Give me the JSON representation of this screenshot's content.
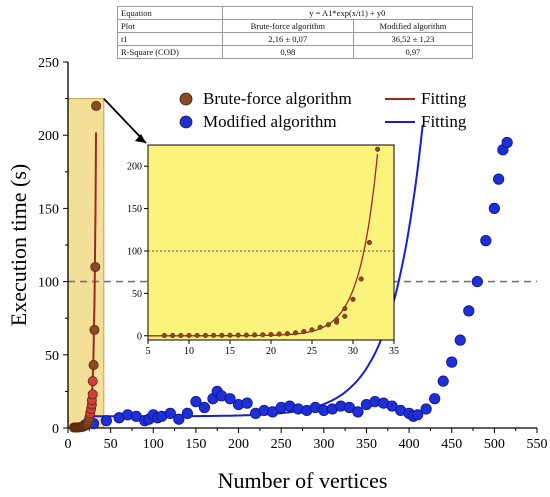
{
  "fit_table": {
    "rows": [
      {
        "label": "Equation",
        "span": "y = A1*exp(x/t1) + y0"
      },
      {
        "label": "Plot",
        "col1": "Brute-force algorithm",
        "col2": "Modified algorithm"
      },
      {
        "label": "t1",
        "col1": "2,16 ± 0,07",
        "col2": "36,52 ± 1,23"
      },
      {
        "label": "R-Square (COD)",
        "col1": "0,98",
        "col2": "0,97"
      }
    ]
  },
  "chart_data": [
    {
      "type": "scatter",
      "xlabel": "Number of vertices",
      "ylabel": "Execution time (s)",
      "xlim": [
        0,
        550
      ],
      "ylim": [
        0,
        250
      ],
      "xticks": [
        0,
        50,
        100,
        150,
        200,
        250,
        300,
        350,
        400,
        450,
        500,
        550
      ],
      "yticks": [
        0,
        50,
        100,
        150,
        200,
        250
      ],
      "reference_line": {
        "y": 100,
        "style": "dashed",
        "color": "#777777"
      },
      "highlight_region": {
        "x": [
          0,
          42
        ],
        "y": [
          0,
          225
        ],
        "color": "#f3df98"
      },
      "legend": {
        "placement": "top-center",
        "entries": [
          {
            "label": "Brute-force algorithm",
            "kind": "marker",
            "color": "#8b4a22"
          },
          {
            "label": "Fitting",
            "kind": "line",
            "color": "#9b2b1e"
          },
          {
            "label": "Modified algorithm",
            "kind": "marker",
            "color": "#1f2fd6"
          },
          {
            "label": "Fitting",
            "kind": "line",
            "color": "#1a1fcc"
          }
        ]
      },
      "series": [
        {
          "name": "Brute-force algorithm",
          "color": "#8b4a22",
          "x": [
            7,
            8,
            9,
            10,
            11,
            12,
            13,
            14,
            15,
            16,
            17,
            18,
            19,
            20,
            21,
            22,
            23,
            24,
            25,
            26,
            27,
            28,
            28,
            29,
            29,
            30,
            31,
            32,
            33
          ],
          "y": [
            0.3,
            0.3,
            0.3,
            0.4,
            0.4,
            0.4,
            0.5,
            0.5,
            0.6,
            0.7,
            0.8,
            1,
            1.2,
            1.5,
            2,
            2.5,
            3.5,
            5,
            7,
            10,
            13,
            16,
            19,
            23,
            32,
            43,
            67,
            110,
            220
          ]
        },
        {
          "name": "Modified algorithm",
          "color": "#1f2fd6",
          "x": [
            20,
            30,
            45,
            60,
            70,
            80,
            90,
            95,
            100,
            105,
            110,
            120,
            130,
            140,
            150,
            160,
            170,
            175,
            180,
            190,
            200,
            210,
            220,
            230,
            240,
            250,
            260,
            270,
            280,
            290,
            300,
            310,
            320,
            330,
            340,
            350,
            360,
            370,
            380,
            390,
            400,
            405,
            410,
            420,
            430,
            440,
            450,
            460,
            470,
            480,
            490,
            500,
            505,
            510,
            515
          ],
          "y": [
            2,
            3,
            5,
            7,
            9,
            8,
            5,
            6,
            9,
            7,
            8,
            10,
            6,
            10,
            18,
            14,
            20,
            25,
            22,
            20,
            16,
            17,
            10,
            12,
            11,
            14,
            15,
            13,
            12,
            14,
            12,
            13,
            15,
            14,
            11,
            16,
            18,
            17,
            15,
            12,
            10,
            8,
            9,
            13,
            20,
            32,
            45,
            60,
            80,
            100,
            128,
            150,
            170,
            190,
            195
          ]
        }
      ],
      "fits": [
        {
          "name": "Fitting",
          "series": "Brute-force algorithm",
          "color": "#9b2b1e",
          "y0": 0.0,
          "A1": 5.01e-05,
          "t1": 2.16,
          "x_range": [
            5,
            33.5
          ]
        },
        {
          "name": "Fitting",
          "series": "Modified algorithm",
          "color": "#1a1fcc",
          "y0": 8.0,
          "A1": 0.00225,
          "t1": 36.52,
          "x_range": [
            20,
            515
          ]
        }
      ]
    },
    {
      "type": "scatter",
      "xlim": [
        5,
        35
      ],
      "ylim": [
        -5,
        225
      ],
      "xticks": [
        5,
        10,
        15,
        20,
        25,
        30,
        35
      ],
      "yticks": [
        0,
        50,
        100,
        150,
        200
      ],
      "reference_line": {
        "y": 100,
        "style": "dotted",
        "color": "#555555"
      },
      "background": "#fbf37c",
      "series": [
        {
          "name": "Brute-force algorithm",
          "color": "#8b4a22",
          "x": [
            7,
            8,
            9,
            10,
            11,
            12,
            13,
            14,
            15,
            16,
            17,
            18,
            19,
            20,
            21,
            22,
            23,
            24,
            25,
            26,
            27,
            28,
            28,
            29,
            29,
            30,
            31,
            32,
            33
          ],
          "y": [
            0.3,
            0.3,
            0.3,
            0.4,
            0.4,
            0.4,
            0.5,
            0.5,
            0.6,
            0.7,
            0.8,
            1,
            1.2,
            1.5,
            2,
            2.5,
            3.5,
            5,
            7,
            10,
            13,
            16,
            19,
            23,
            32,
            43,
            67,
            110,
            220
          ]
        }
      ],
      "fits": [
        {
          "name": "Fitting",
          "series": "Brute-force algorithm",
          "color": "#9b2b1e",
          "y0": 0.0,
          "A1": 5.01e-05,
          "t1": 2.16,
          "x_range": [
            5,
            33.5
          ]
        }
      ]
    }
  ]
}
